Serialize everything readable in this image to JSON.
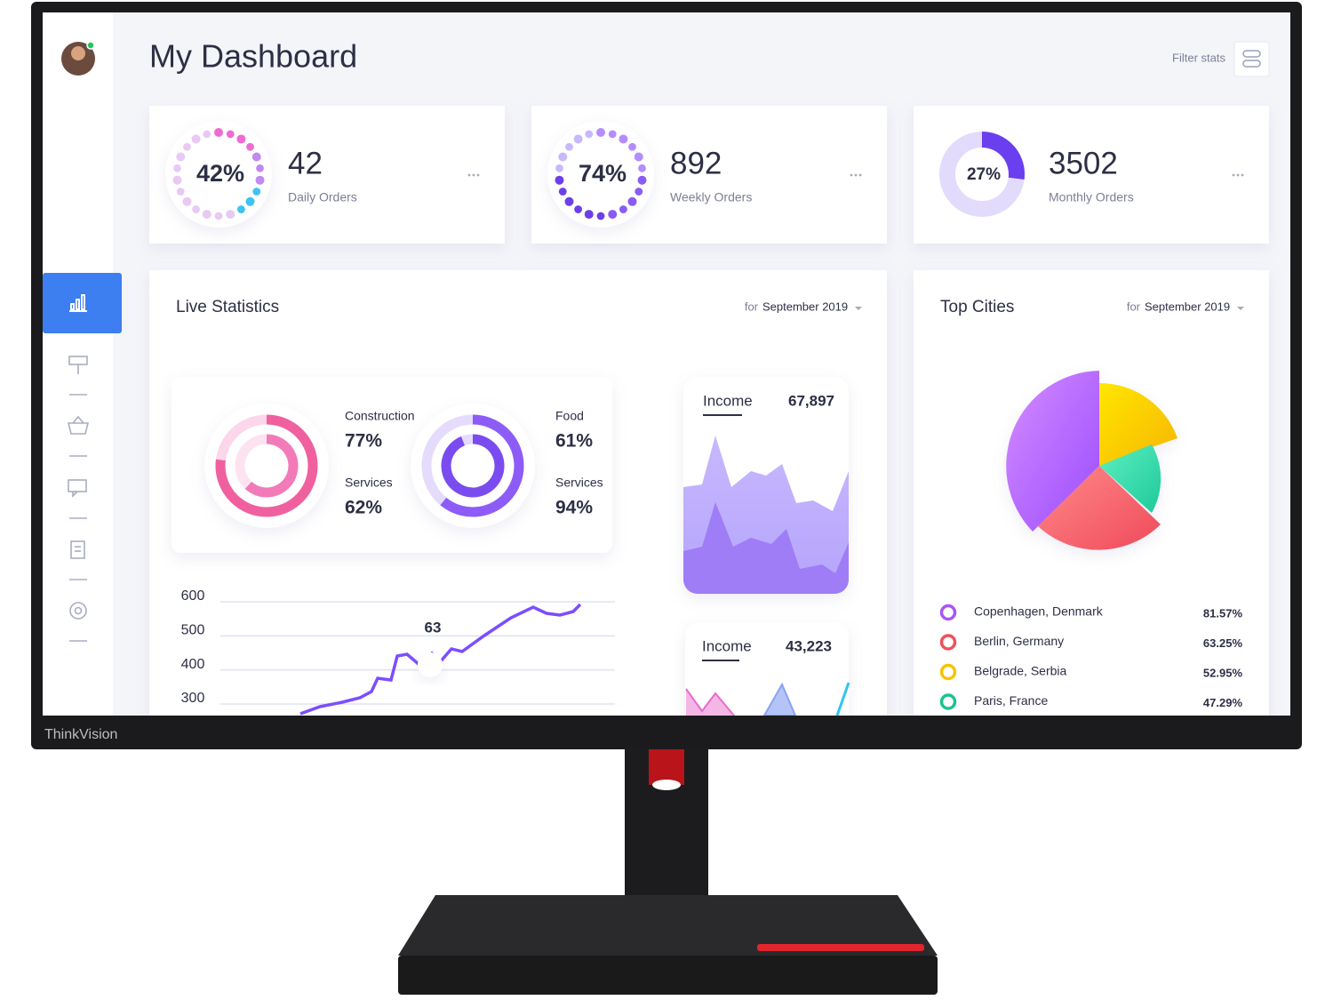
{
  "brand": "ThinkVision",
  "header": {
    "title": "My Dashboard",
    "filter": "Filter stats"
  },
  "stats": [
    {
      "percent": "42%",
      "value": "42",
      "label": "Daily Orders"
    },
    {
      "percent": "74%",
      "value": "892",
      "label": "Weekly Orders"
    },
    {
      "percent": "27%",
      "value": "3502",
      "label": "Monthly Orders"
    }
  ],
  "live": {
    "title": "Live Statistics",
    "period_prefix": "for",
    "period": "September 2019",
    "rings": [
      {
        "label": "Construction",
        "value": "77%"
      },
      {
        "label": "Services",
        "value": "62%"
      },
      {
        "label": "Food",
        "value": "61%"
      },
      {
        "label": "Services",
        "value": "94%"
      }
    ],
    "line_chart": {
      "yticks": [
        600,
        500,
        400,
        300
      ],
      "annotation": "63"
    },
    "income": [
      {
        "label": "Income",
        "value": "67,897"
      },
      {
        "label": "Income",
        "value": "43,223"
      }
    ]
  },
  "cities": {
    "title": "Top Cities",
    "period_prefix": "for",
    "period": "September 2019",
    "rows": [
      {
        "name": "Copenhagen, Denmark",
        "value": "81.57%"
      },
      {
        "name": "Berlin, Germany",
        "value": "63.25%"
      },
      {
        "name": "Belgrade, Serbia",
        "value": "52.95%"
      },
      {
        "name": "Paris, France",
        "value": "47.29%"
      }
    ]
  }
}
